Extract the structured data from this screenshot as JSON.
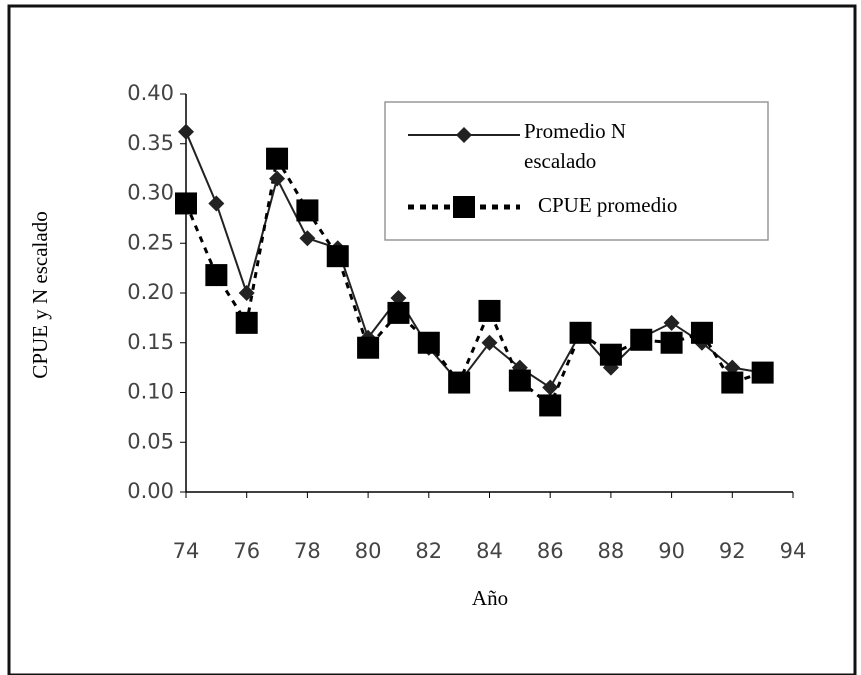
{
  "chart_data": {
    "type": "line",
    "x_label": "Año",
    "y_label": "CPUE y N escalado",
    "x": [
      74,
      75,
      76,
      77,
      78,
      79,
      80,
      81,
      82,
      83,
      84,
      85,
      86,
      87,
      88,
      89,
      90,
      91,
      92,
      93
    ],
    "series": [
      {
        "name": "Promedio N escalado",
        "color": "#222222",
        "marker": "diamond",
        "line": "solid",
        "values": [
          0.362,
          0.29,
          0.2,
          0.315,
          0.255,
          0.245,
          0.155,
          0.195,
          0.145,
          0.11,
          0.15,
          0.125,
          0.105,
          0.16,
          0.125,
          0.155,
          0.17,
          0.15,
          0.125,
          0.12
        ]
      },
      {
        "name": "CPUE promedio",
        "color": "#000000",
        "marker": "square",
        "line": "dotted",
        "values": [
          0.29,
          0.218,
          0.17,
          0.335,
          0.283,
          0.237,
          0.145,
          0.18,
          0.15,
          0.11,
          0.182,
          0.112,
          0.087,
          0.16,
          0.138,
          0.153,
          0.15,
          0.16,
          0.11,
          0.12
        ]
      }
    ],
    "xlim": [
      74,
      94
    ],
    "xticks": [
      74,
      76,
      78,
      80,
      82,
      84,
      86,
      88,
      90,
      92,
      94
    ],
    "ylim": [
      0,
      0.4
    ],
    "yticks": [
      {
        "value": 0,
        "label": "0.00"
      },
      {
        "value": 0.05,
        "label": "0.05"
      },
      {
        "value": 0.1,
        "label": "0.10"
      },
      {
        "value": 0.15,
        "label": "0.15"
      },
      {
        "value": 0.2,
        "label": "0.20"
      },
      {
        "value": 0.25,
        "label": "0.25"
      },
      {
        "value": 0.3,
        "label": "0.30"
      },
      {
        "value": 0.35,
        "label": "0.35"
      },
      {
        "value": 0.4,
        "label": "0.40"
      }
    ],
    "legend": "top-right",
    "grid": false
  }
}
